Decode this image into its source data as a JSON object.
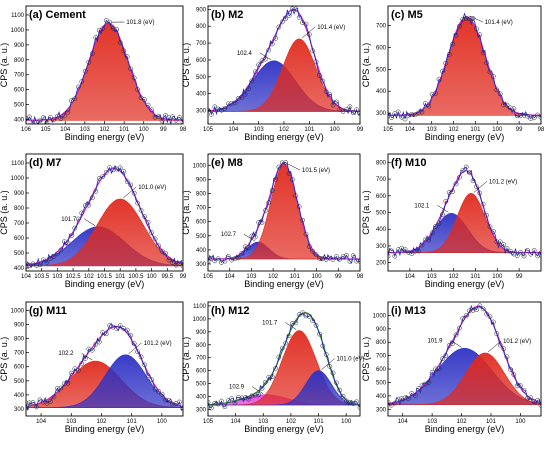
{
  "chart_data": [
    {
      "type": "line",
      "id": "a",
      "label": "(a)",
      "title": "Cement",
      "xlabel": "Binding energy (eV)",
      "ylabel": "CPS (a. u.)",
      "xlim": [
        106,
        98
      ],
      "ylim": [
        370,
        1160
      ],
      "xticks": [
        106,
        105,
        104,
        103,
        102,
        101,
        100,
        99,
        98
      ],
      "yticks": [
        400,
        500,
        600,
        700,
        800,
        900,
        1000,
        1100
      ],
      "background": 395,
      "peaks": [
        {
          "center": 101.8,
          "amplitude": 650,
          "fwhm": 2.35,
          "fill": "#e02a1e",
          "label": "101.8 (eV)"
        }
      ]
    },
    {
      "type": "line",
      "id": "b",
      "label": "(b)",
      "title": "M2",
      "xlabel": "Binding energy (eV)",
      "ylabel": "CPS (a. u.)",
      "xlim": [
        105,
        99
      ],
      "ylim": [
        220,
        920
      ],
      "xticks": [
        105,
        104,
        103,
        102,
        101,
        100,
        99
      ],
      "yticks": [
        300,
        400,
        500,
        600,
        700,
        800,
        900
      ],
      "background": 295,
      "peaks": [
        {
          "center": 102.4,
          "amplitude": 300,
          "fwhm": 2.0,
          "fill": "#2e32c4",
          "label": "102.4"
        },
        {
          "center": 101.4,
          "amplitude": 430,
          "fwhm": 1.55,
          "fill": "#e02a1e",
          "label": "101.4 (eV)"
        }
      ]
    },
    {
      "type": "line",
      "id": "c",
      "label": "(c)",
      "title": "M5",
      "xlabel": "Binding energy (eV)",
      "ylabel": "CPS (a. u.)",
      "xlim": [
        105,
        98
      ],
      "ylim": [
        250,
        790
      ],
      "xticks": [
        105,
        104,
        103,
        102,
        101,
        100,
        99,
        98
      ],
      "yticks": [
        300,
        400,
        500,
        600,
        700
      ],
      "background": 290,
      "peaks": [
        {
          "center": 101.4,
          "amplitude": 450,
          "fwhm": 2.0,
          "fill": "#e02a1e",
          "label": "101.4 (eV)"
        }
      ]
    },
    {
      "type": "line",
      "id": "d",
      "label": "(d)",
      "title": "M7",
      "xlabel": "Binding energy (eV)",
      "ylabel": "CPS (a. u.)",
      "xlim": [
        104,
        99
      ],
      "ylim": [
        380,
        1160
      ],
      "xticks": [
        104.0,
        103.5,
        103.0,
        102.5,
        102.0,
        101.5,
        101.0,
        100.5,
        100.0,
        99.5,
        99.0
      ],
      "yticks": [
        400,
        500,
        600,
        700,
        800,
        900,
        1000,
        1100
      ],
      "background": 415,
      "peaks": [
        {
          "center": 101.7,
          "amplitude": 260,
          "fwhm": 2.0,
          "fill": "#2e32c4",
          "label": "101.7"
        },
        {
          "center": 101.0,
          "amplitude": 445,
          "fwhm": 1.75,
          "fill": "#e02a1e",
          "label": "101.0 (eV)"
        }
      ]
    },
    {
      "type": "line",
      "id": "e",
      "label": "(e)",
      "title": "M8",
      "xlabel": "Binding energy (eV)",
      "ylabel": "CPS (a. u.)",
      "xlim": [
        105,
        98
      ],
      "ylim": [
        250,
        1080
      ],
      "xticks": [
        105,
        104,
        103,
        102,
        101,
        100,
        99,
        98
      ],
      "yticks": [
        300,
        400,
        500,
        600,
        700,
        800,
        900,
        1000
      ],
      "background": 335,
      "peaks": [
        {
          "center": 102.7,
          "amplitude": 120,
          "fwhm": 1.2,
          "fill": "#2e32c4",
          "label": "102.7"
        },
        {
          "center": 101.5,
          "amplitude": 670,
          "fwhm": 1.45,
          "fill": "#e02a1e",
          "label": "101.5 (eV)"
        }
      ]
    },
    {
      "type": "line",
      "id": "f",
      "label": "(f)",
      "title": "M10",
      "xlabel": "Binding energy (eV)",
      "ylabel": "CPS (a. u.)",
      "xlim": [
        105,
        98
      ],
      "ylim": [
        150,
        850
      ],
      "xticks": [
        104,
        103,
        102,
        101,
        100,
        99
      ],
      "yticks": [
        200,
        300,
        400,
        500,
        600,
        700,
        800
      ],
      "background": 260,
      "peaks": [
        {
          "center": 102.1,
          "amplitude": 235,
          "fwhm": 1.75,
          "fill": "#2e32c4",
          "label": "102.1"
        },
        {
          "center": 101.2,
          "amplitude": 355,
          "fwhm": 1.5,
          "fill": "#e02a1e",
          "label": "101.2 (eV)"
        }
      ]
    },
    {
      "type": "line",
      "id": "g",
      "label": "(g)",
      "title": "M11",
      "xlabel": "Binding energy (eV)",
      "ylabel": "CPS (a. u.)",
      "xlim": [
        104.5,
        99.3
      ],
      "ylim": [
        250,
        1060
      ],
      "xticks": [
        104,
        103,
        102,
        101,
        100
      ],
      "yticks": [
        300,
        400,
        500,
        600,
        700,
        800,
        900,
        1000
      ],
      "background": 310,
      "peaks": [
        {
          "center": 102.2,
          "amplitude": 330,
          "fwhm": 2.0,
          "fill": "#e02a1e",
          "label": "102.2"
        },
        {
          "center": 101.2,
          "amplitude": 375,
          "fwhm": 1.6,
          "fill": "#2e32c4",
          "label": "101.2 (eV)"
        }
      ]
    },
    {
      "type": "line",
      "id": "h",
      "label": "(h)",
      "title": "M12",
      "xlabel": "Binding energy (eV)",
      "ylabel": "CPS (a. u.)",
      "xlim": [
        105,
        99.5
      ],
      "ylim": [
        250,
        1130
      ],
      "xticks": [
        105,
        104,
        103,
        102,
        101,
        100
      ],
      "yticks": [
        300,
        400,
        500,
        600,
        700,
        800,
        900,
        1000,
        1100
      ],
      "background": 335,
      "fitColor": "#2e7d32",
      "peaks": [
        {
          "center": 102.9,
          "amplitude": 80,
          "fwhm": 1.9,
          "fill": "#e23fe0",
          "label": "102.9"
        },
        {
          "center": 101.7,
          "amplitude": 575,
          "fwhm": 1.45,
          "fill": "#e02a1e",
          "label": "101.7"
        },
        {
          "center": 101.0,
          "amplitude": 265,
          "fwhm": 1.1,
          "fill": "#2e32c4",
          "label": "101.0 (eV)"
        }
      ]
    },
    {
      "type": "line",
      "id": "i",
      "label": "(i)",
      "title": "M13",
      "xlabel": "Binding energy (eV)",
      "ylabel": "CPS (a. u.)",
      "xlim": [
        104.5,
        99.3
      ],
      "ylim": [
        250,
        1100
      ],
      "xticks": [
        104,
        103,
        102,
        101,
        100
      ],
      "yticks": [
        300,
        400,
        500,
        600,
        700,
        800,
        900,
        1000
      ],
      "background": 335,
      "peaks": [
        {
          "center": 101.9,
          "amplitude": 420,
          "fwhm": 2.2,
          "fill": "#2e32c4",
          "label": "101.9"
        },
        {
          "center": 101.2,
          "amplitude": 385,
          "fwhm": 1.55,
          "fill": "#e02a1e",
          "label": "101.2 (eV)"
        }
      ]
    }
  ]
}
